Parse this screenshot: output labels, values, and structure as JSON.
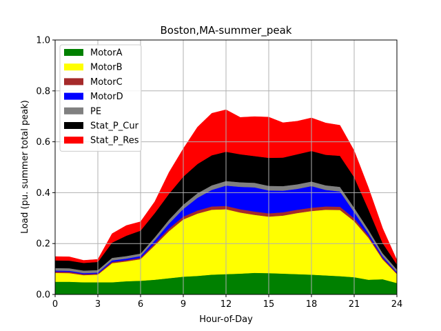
{
  "chart_data": {
    "type": "area",
    "stacked": true,
    "title": "Boston,MA-summer_peak",
    "xlabel": "Hour-of-Day",
    "ylabel": "Load (pu. summer total peak)",
    "xlim": [
      0,
      24
    ],
    "ylim": [
      0,
      1.0
    ],
    "xticks": [
      0,
      3,
      6,
      9,
      12,
      15,
      18,
      21,
      24
    ],
    "xtick_labels": [
      "0",
      "3",
      "6",
      "9",
      "12",
      "15",
      "18",
      "21",
      "24"
    ],
    "yticks": [
      0,
      0.2,
      0.4,
      0.6,
      0.8,
      1.0
    ],
    "ytick_labels": [
      "0.0",
      "0.2",
      "0.4",
      "0.6",
      "0.8",
      "1.0"
    ],
    "grid": true,
    "legend_position": "top-left",
    "x": [
      0,
      1,
      2,
      3,
      4,
      5,
      6,
      7,
      8,
      9,
      10,
      11,
      12,
      13,
      14,
      15,
      16,
      17,
      18,
      19,
      20,
      21,
      22,
      23,
      24
    ],
    "series": [
      {
        "name": "MotorA",
        "color": "#008000",
        "values": [
          0.05,
          0.05,
          0.048,
          0.048,
          0.048,
          0.052,
          0.054,
          0.058,
          0.064,
          0.07,
          0.073,
          0.078,
          0.08,
          0.082,
          0.085,
          0.084,
          0.082,
          0.08,
          0.078,
          0.075,
          0.072,
          0.068,
          0.058,
          0.06,
          0.045
        ]
      },
      {
        "name": "MotorB",
        "color": "#ffff00",
        "values": [
          0.035,
          0.034,
          0.028,
          0.03,
          0.075,
          0.078,
          0.085,
          0.135,
          0.185,
          0.225,
          0.245,
          0.255,
          0.255,
          0.24,
          0.228,
          0.222,
          0.228,
          0.24,
          0.25,
          0.258,
          0.26,
          0.22,
          0.165,
          0.078,
          0.035
        ]
      },
      {
        "name": "MotorC",
        "color": "#a52a2a",
        "values": [
          0.005,
          0.005,
          0.004,
          0.004,
          0.005,
          0.005,
          0.005,
          0.008,
          0.01,
          0.011,
          0.012,
          0.013,
          0.013,
          0.013,
          0.013,
          0.013,
          0.013,
          0.013,
          0.013,
          0.013,
          0.013,
          0.011,
          0.008,
          0.006,
          0.004
        ]
      },
      {
        "name": "MotorD",
        "color": "#0000ff",
        "values": [
          0.004,
          0.004,
          0.004,
          0.004,
          0.006,
          0.006,
          0.007,
          0.012,
          0.02,
          0.03,
          0.05,
          0.065,
          0.08,
          0.088,
          0.095,
          0.09,
          0.085,
          0.082,
          0.085,
          0.065,
          0.06,
          0.025,
          0.01,
          0.006,
          0.004
        ]
      },
      {
        "name": "PE",
        "color": "#808080",
        "values": [
          0.01,
          0.01,
          0.01,
          0.01,
          0.01,
          0.01,
          0.01,
          0.012,
          0.015,
          0.017,
          0.018,
          0.018,
          0.018,
          0.018,
          0.018,
          0.018,
          0.018,
          0.018,
          0.018,
          0.018,
          0.018,
          0.017,
          0.014,
          0.012,
          0.01
        ]
      },
      {
        "name": "Stat_P_Cur",
        "color": "#000000",
        "values": [
          0.03,
          0.03,
          0.03,
          0.032,
          0.06,
          0.08,
          0.09,
          0.095,
          0.102,
          0.11,
          0.115,
          0.118,
          0.115,
          0.11,
          0.105,
          0.11,
          0.112,
          0.118,
          0.12,
          0.12,
          0.122,
          0.12,
          0.08,
          0.04,
          0.02
        ]
      },
      {
        "name": "Stat_P_Res",
        "color": "#ff0000",
        "values": [
          0.015,
          0.015,
          0.01,
          0.01,
          0.035,
          0.04,
          0.035,
          0.045,
          0.084,
          0.11,
          0.145,
          0.165,
          0.165,
          0.145,
          0.155,
          0.16,
          0.137,
          0.13,
          0.13,
          0.125,
          0.12,
          0.104,
          0.085,
          0.058,
          0.017
        ]
      }
    ]
  }
}
